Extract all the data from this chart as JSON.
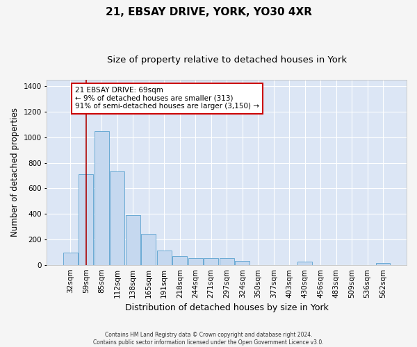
{
  "title": "21, EBSAY DRIVE, YORK, YO30 4XR",
  "subtitle": "Size of property relative to detached houses in York",
  "xlabel": "Distribution of detached houses by size in York",
  "ylabel": "Number of detached properties",
  "footer_line1": "Contains HM Land Registry data © Crown copyright and database right 2024.",
  "footer_line2": "Contains public sector information licensed under the Open Government Licence v3.0.",
  "bar_labels": [
    "32sqm",
    "59sqm",
    "85sqm",
    "112sqm",
    "138sqm",
    "165sqm",
    "191sqm",
    "218sqm",
    "244sqm",
    "271sqm",
    "297sqm",
    "324sqm",
    "350sqm",
    "377sqm",
    "403sqm",
    "430sqm",
    "456sqm",
    "483sqm",
    "509sqm",
    "536sqm",
    "562sqm"
  ],
  "bar_values": [
    95,
    710,
    1045,
    730,
    390,
    245,
    110,
    70,
    55,
    55,
    50,
    30,
    0,
    0,
    0,
    28,
    0,
    0,
    0,
    0,
    15
  ],
  "bar_color": "#c5d8ef",
  "bar_edge_color": "#6aaad4",
  "bg_color": "#dce6f5",
  "grid_color": "#ffffff",
  "fig_facecolor": "#f5f5f5",
  "ylim": [
    0,
    1450
  ],
  "yticks": [
    0,
    200,
    400,
    600,
    800,
    1000,
    1200,
    1400
  ],
  "red_line_x": 1.0,
  "annotation_text": "21 EBSAY DRIVE: 69sqm\n← 9% of detached houses are smaller (313)\n91% of semi-detached houses are larger (3,150) →",
  "annotation_box_color": "#ffffff",
  "annotation_box_edge_color": "#cc0000",
  "title_fontsize": 11,
  "subtitle_fontsize": 9.5,
  "tick_fontsize": 7.5,
  "ylabel_fontsize": 8.5,
  "xlabel_fontsize": 9,
  "annotation_fontsize": 7.5,
  "footer_fontsize": 5.5
}
